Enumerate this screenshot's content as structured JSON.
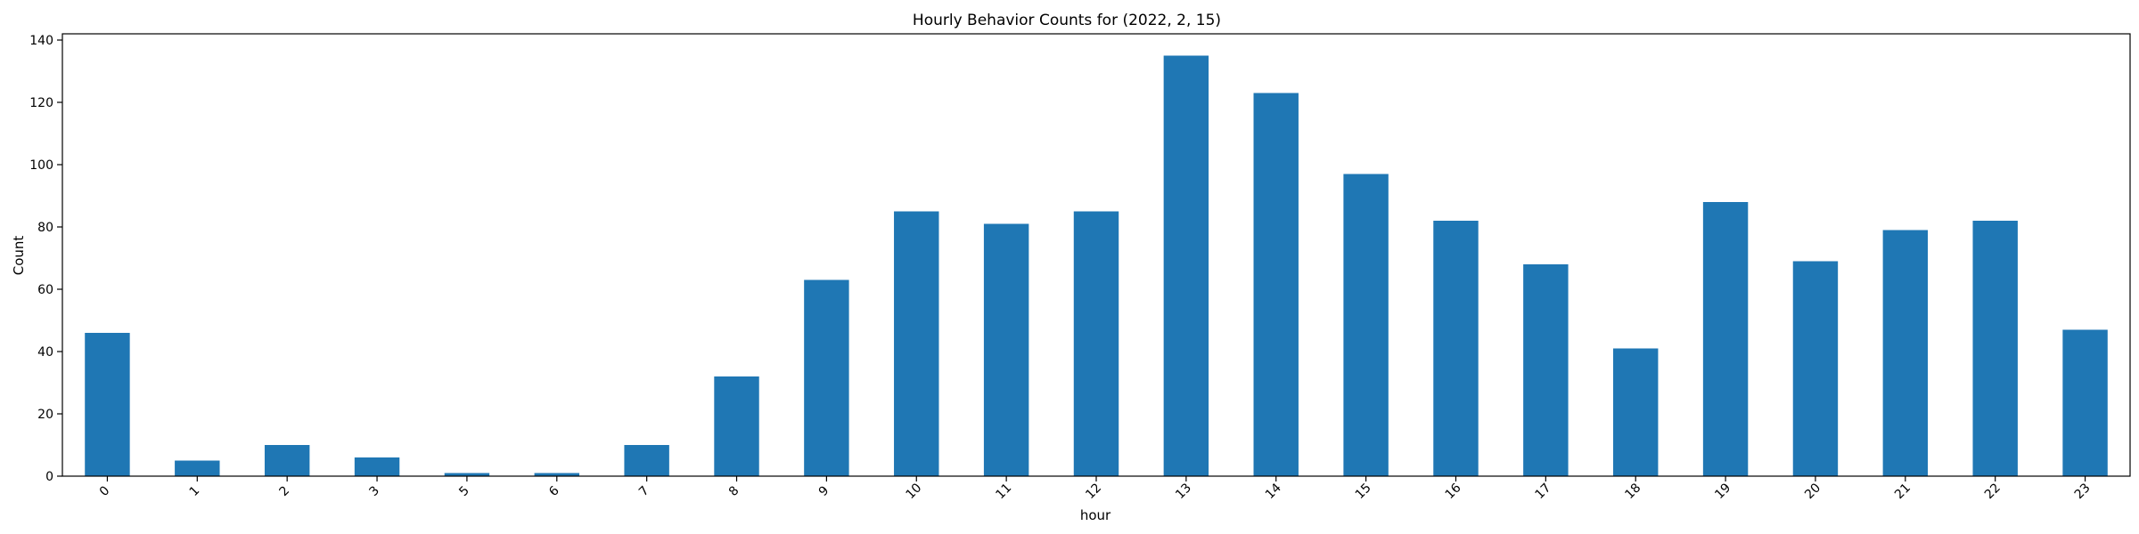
{
  "chart_data": {
    "type": "bar",
    "title": "Hourly Behavior Counts for (2022, 2, 15)",
    "xlabel": "hour",
    "ylabel": "Count",
    "categories": [
      "0",
      "1",
      "2",
      "3",
      "5",
      "6",
      "7",
      "8",
      "9",
      "10",
      "11",
      "12",
      "13",
      "14",
      "15",
      "16",
      "17",
      "18",
      "19",
      "20",
      "21",
      "22",
      "23"
    ],
    "values": [
      46,
      5,
      10,
      6,
      1,
      1,
      10,
      32,
      63,
      85,
      81,
      85,
      135,
      123,
      97,
      82,
      68,
      41,
      88,
      69,
      79,
      82,
      47
    ],
    "ylim": [
      0,
      142
    ],
    "yticks": [
      0,
      20,
      40,
      60,
      80,
      100,
      120,
      140
    ],
    "bar_color": "#1f77b4",
    "grid": false,
    "legend": "none"
  }
}
